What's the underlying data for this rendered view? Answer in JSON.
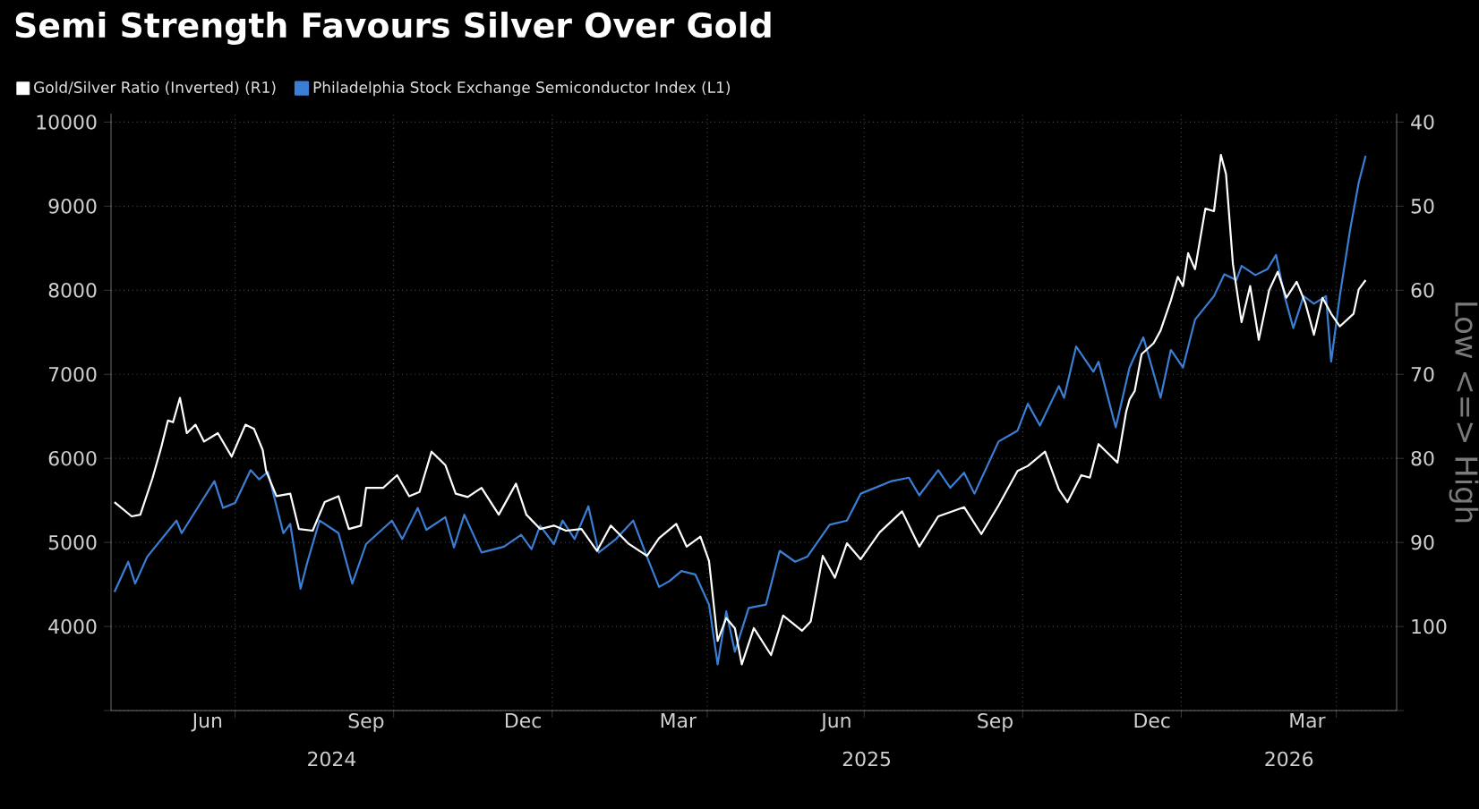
{
  "chart_data": {
    "type": "line",
    "title": "Semi Strength Favours Silver Over Gold",
    "y2label": "Low <=> High",
    "xlim": [
      "2024-04-20",
      "2026-05-06"
    ],
    "xticks": [
      {
        "value": "2024-07-01",
        "label": null
      },
      {
        "value": "2024-10-01",
        "label": null
      },
      {
        "value": "2025-01-01",
        "label": null
      },
      {
        "value": "2025-04-01",
        "label": null
      },
      {
        "value": "2025-07-01",
        "label": null
      },
      {
        "value": "2025-10-01",
        "label": null
      },
      {
        "value": "2026-01-01",
        "label": null
      },
      {
        "value": "2026-04-01",
        "label": null
      },
      {
        "value": "2024-06-15",
        "label": "Jun"
      },
      {
        "value": "2024-09-15",
        "label": "Sep"
      },
      {
        "value": "2024-12-15",
        "label": "Dec"
      },
      {
        "value": "2025-03-15",
        "label": "Mar"
      },
      {
        "value": "2025-06-15",
        "label": "Jun"
      },
      {
        "value": "2025-09-15",
        "label": "Sep"
      },
      {
        "value": "2025-12-15",
        "label": "Dec"
      },
      {
        "value": "2026-03-15",
        "label": "Mar"
      }
    ],
    "annotations": [
      "2024",
      "2025",
      "2026"
    ],
    "ylim": [
      3000,
      10100
    ],
    "yticks": [
      {
        "value": 3000,
        "label": null
      },
      4000,
      5000,
      6000,
      7000,
      8000,
      9000,
      10000
    ],
    "y2lim": [
      110,
      39
    ],
    "y2ticks": [
      40,
      50,
      60,
      70,
      80,
      90,
      100,
      {
        "value": 110,
        "label": null
      }
    ],
    "grid": true,
    "legend": "top left",
    "series": [
      {
        "name": "Gold/Silver Ratio (Inverted) (R1)",
        "color": "#ffffff",
        "axis": "y2",
        "x": [
          "2024-04-22",
          "2024-05-02",
          "2024-05-07",
          "2024-05-14",
          "2024-05-19",
          "2024-05-23",
          "2024-05-26",
          "2024-05-30",
          "2024-06-03",
          "2024-06-08",
          "2024-06-13",
          "2024-06-21",
          "2024-06-29",
          "2024-07-07",
          "2024-07-12",
          "2024-07-17",
          "2024-07-19",
          "2024-07-25",
          "2024-08-02",
          "2024-08-07",
          "2024-08-15",
          "2024-08-22",
          "2024-08-30",
          "2024-09-05",
          "2024-09-12",
          "2024-09-15",
          "2024-09-25",
          "2024-10-03",
          "2024-10-10",
          "2024-10-16",
          "2024-10-23",
          "2024-10-31",
          "2024-11-06",
          "2024-11-13",
          "2024-11-21",
          "2024-12-01",
          "2024-12-11",
          "2024-12-17",
          "2024-12-25",
          "2025-01-02",
          "2025-01-09",
          "2025-01-18",
          "2025-01-27",
          "2025-02-04",
          "2025-02-14",
          "2025-02-25",
          "2025-03-04",
          "2025-03-14",
          "2025-03-20",
          "2025-03-28",
          "2025-04-02",
          "2025-04-07",
          "2025-04-12",
          "2025-04-17",
          "2025-04-21",
          "2025-04-28",
          "2025-05-08",
          "2025-05-15",
          "2025-05-26",
          "2025-05-31",
          "2025-06-07",
          "2025-06-14",
          "2025-06-21",
          "2025-06-29",
          "2025-07-10",
          "2025-07-23",
          "2025-08-02",
          "2025-08-13",
          "2025-08-28",
          "2025-09-07",
          "2025-09-17",
          "2025-09-28",
          "2025-10-04",
          "2025-10-14",
          "2025-10-22",
          "2025-10-27",
          "2025-11-04",
          "2025-11-09",
          "2025-11-14",
          "2025-11-25",
          "2025-11-30",
          "2025-12-02",
          "2025-12-05",
          "2025-12-09",
          "2025-12-16",
          "2025-12-20",
          "2025-12-26",
          "2025-12-30",
          "2026-01-02",
          "2026-01-05",
          "2026-01-09",
          "2026-01-15",
          "2026-01-20",
          "2026-01-24",
          "2026-01-27",
          "2026-01-31",
          "2026-02-05",
          "2026-02-10",
          "2026-02-15",
          "2026-02-21",
          "2026-02-26",
          "2026-03-03",
          "2026-03-09",
          "2026-03-14",
          "2026-03-19",
          "2026-03-24",
          "2026-03-29",
          "2026-04-03",
          "2026-04-11",
          "2026-04-14",
          "2026-04-18"
        ],
        "values": [
          85.2,
          86.9,
          86.7,
          82.4,
          78.8,
          75.5,
          75.7,
          72.8,
          77,
          76,
          78,
          77,
          79.8,
          76,
          76.5,
          79,
          81.5,
          84.5,
          84.2,
          88.4,
          88.6,
          85.2,
          84.5,
          88.4,
          88,
          83.5,
          83.5,
          82,
          84.5,
          84,
          79.2,
          80.8,
          84.2,
          84.6,
          83.5,
          86.7,
          83,
          86.7,
          88.4,
          88,
          88.6,
          88.4,
          91,
          88,
          90.1,
          91.6,
          89.5,
          87.8,
          90.5,
          89.3,
          92.2,
          101.7,
          99,
          100.2,
          104.5,
          100.2,
          103.4,
          98.7,
          100.5,
          99.4,
          91.6,
          94.2,
          90.1,
          92,
          88.8,
          86.3,
          90.5,
          86.9,
          85.8,
          89,
          85.6,
          81.5,
          80.9,
          79.2,
          83.7,
          85.2,
          82,
          82.3,
          78.3,
          80.5,
          74.5,
          73,
          72,
          67.6,
          66.3,
          64.8,
          61.2,
          58.4,
          59.5,
          55.6,
          57.5,
          50.3,
          50.6,
          43.9,
          46.2,
          56.9,
          63.8,
          59.5,
          65.9,
          60,
          57.8,
          60.9,
          59,
          61.5,
          65.3,
          60.9,
          62.8,
          64.3,
          62.8,
          59.9,
          58.8
        ]
      },
      {
        "name": "Philadelphia Stock Exchange Semiconductor Index (L1)",
        "color": "#3a7fd5",
        "x": [
          "2024-04-22",
          "2024-04-30",
          "2024-05-04",
          "2024-05-11",
          "2024-05-28",
          "2024-05-31",
          "2024-06-11",
          "2024-06-19",
          "2024-06-24",
          "2024-07-01",
          "2024-07-10",
          "2024-07-15",
          "2024-07-20",
          "2024-07-29",
          "2024-08-02",
          "2024-08-08",
          "2024-08-12",
          "2024-08-19",
          "2024-08-30",
          "2024-09-07",
          "2024-09-15",
          "2024-09-30",
          "2024-10-06",
          "2024-10-15",
          "2024-10-20",
          "2024-10-31",
          "2024-11-05",
          "2024-11-11",
          "2024-11-21",
          "2024-12-04",
          "2024-12-14",
          "2024-12-20",
          "2024-12-25",
          "2025-01-02",
          "2025-01-07",
          "2025-01-14",
          "2025-01-22",
          "2025-01-28",
          "2025-02-07",
          "2025-02-17",
          "2025-02-25",
          "2025-03-04",
          "2025-03-10",
          "2025-03-17",
          "2025-03-25",
          "2025-04-02",
          "2025-04-07",
          "2025-04-12",
          "2025-04-17",
          "2025-04-25",
          "2025-05-05",
          "2025-05-13",
          "2025-05-22",
          "2025-05-29",
          "2025-06-11",
          "2025-06-21",
          "2025-06-29",
          "2025-07-17",
          "2025-07-27",
          "2025-08-02",
          "2025-08-13",
          "2025-08-20",
          "2025-08-28",
          "2025-09-03",
          "2025-09-17",
          "2025-09-28",
          "2025-10-04",
          "2025-10-11",
          "2025-10-22",
          "2025-10-25",
          "2025-11-01",
          "2025-11-11",
          "2025-11-14",
          "2025-11-24",
          "2025-12-02",
          "2025-12-10",
          "2025-12-20",
          "2025-12-26",
          "2026-01-02",
          "2026-01-09",
          "2026-01-20",
          "2026-01-26",
          "2026-02-02",
          "2026-02-05",
          "2026-02-13",
          "2026-02-20",
          "2026-02-25",
          "2026-03-02",
          "2026-03-07",
          "2026-03-13",
          "2026-03-19",
          "2026-03-26",
          "2026-03-29",
          "2026-04-03",
          "2026-04-09",
          "2026-04-14",
          "2026-04-18"
        ],
        "values": [
          4410,
          4770,
          4510,
          4830,
          5260,
          5110,
          5470,
          5730,
          5410,
          5470,
          5860,
          5750,
          5840,
          5110,
          5220,
          4450,
          4770,
          5260,
          5110,
          4510,
          4980,
          5260,
          5040,
          5410,
          5150,
          5300,
          4940,
          5330,
          4880,
          4950,
          5090,
          4920,
          5200,
          4980,
          5260,
          5040,
          5430,
          4880,
          5040,
          5260,
          4830,
          4470,
          4540,
          4660,
          4620,
          4260,
          3550,
          4180,
          3700,
          4220,
          4260,
          4900,
          4770,
          4830,
          5210,
          5260,
          5580,
          5730,
          5770,
          5560,
          5860,
          5650,
          5830,
          5580,
          6200,
          6330,
          6650,
          6390,
          6860,
          6720,
          7330,
          7030,
          7150,
          6370,
          7080,
          7440,
          6720,
          7290,
          7080,
          7650,
          7930,
          8190,
          8120,
          8290,
          8180,
          8250,
          8420,
          7930,
          7550,
          7930,
          7840,
          7930,
          7150,
          7930,
          8720,
          9280,
          9600
        ]
      }
    ]
  }
}
